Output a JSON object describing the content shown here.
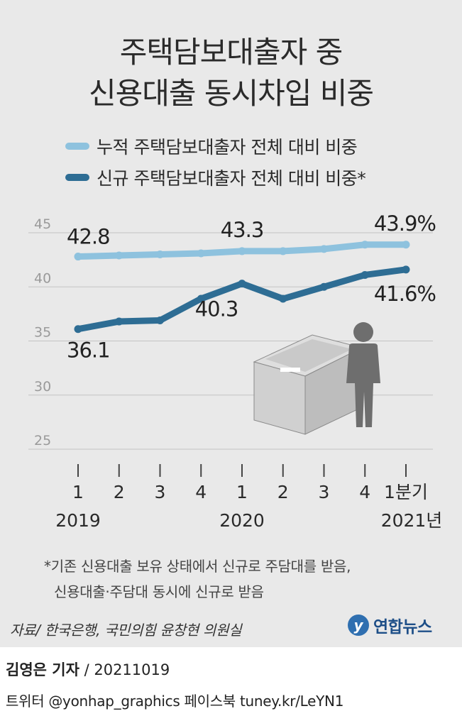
{
  "title_line1": "주택담보대출자 중",
  "title_line2": "신용대출 동시차입 비중",
  "colors": {
    "series1": "#8ec2de",
    "series2": "#2e6d94",
    "grid": "#c4c4c4",
    "axis_text": "#9a9a9a",
    "figure": "#6e6e6e"
  },
  "chart_data": {
    "type": "line",
    "ylim": [
      25,
      45
    ],
    "yticks": [
      "45",
      "40",
      "35",
      "30",
      "25"
    ],
    "x_labels": [
      "1",
      "2",
      "3",
      "4",
      "1",
      "2",
      "3",
      "4",
      "1분기"
    ],
    "year_labels": [
      "2019",
      "2020",
      "2021년"
    ],
    "series": [
      {
        "name": "누적 주택담보대출자 전체 대비 비중",
        "values": [
          42.8,
          42.9,
          43.0,
          43.1,
          43.3,
          43.3,
          43.5,
          43.9,
          43.9
        ]
      },
      {
        "name": "신규 주택담보대출자 전체 대비 비중*",
        "values": [
          36.1,
          36.8,
          36.9,
          38.9,
          40.3,
          38.9,
          40.0,
          41.1,
          41.6
        ]
      }
    ],
    "annotations": {
      "s1": [
        "42.8",
        "43.3",
        "43.9%"
      ],
      "s2": [
        "36.1",
        "40.3",
        "41.6%"
      ]
    }
  },
  "footnote_line1": "*기존 신용대출 보유 상태에서 신규로 주담대를 받음,",
  "footnote_line2": "신용대출·주담대 동시에 신규로 받음",
  "source": "자료/ 한국은행, 국민의힘 윤창현 의원실",
  "agency": {
    "name": "연합뉴스",
    "logo_text": "y"
  },
  "byline": {
    "reporter": "김영은 기자",
    "date": " / 20211019"
  },
  "social": "트위터 @yonhap_graphics  페이스북 tuney.kr/LeYN1"
}
